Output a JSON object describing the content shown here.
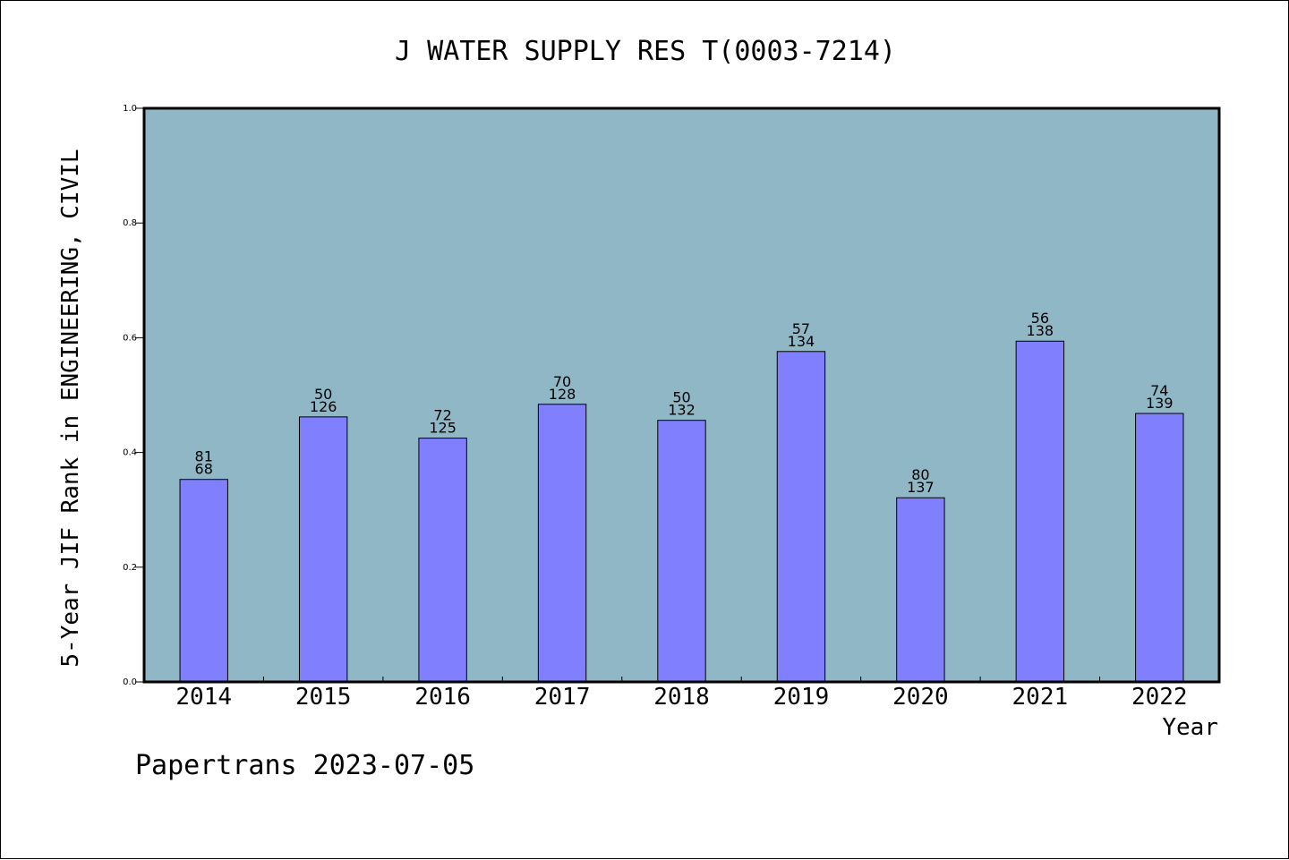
{
  "chart_data": {
    "type": "bar",
    "title": "J WATER SUPPLY RES T(0003-7214)",
    "xlabel": "Year",
    "ylabel": "5-Year JIF Rank in ENGINEERING, CIVIL",
    "ylim": [
      0,
      1
    ],
    "yticks": [
      "0.0",
      "0.2",
      "0.4",
      "0.6",
      "0.8",
      "1.0"
    ],
    "categories": [
      "2014",
      "2015",
      "2016",
      "2017",
      "2018",
      "2019",
      "2020",
      "2021",
      "2022"
    ],
    "values": [
      0.353,
      0.462,
      0.425,
      0.484,
      0.456,
      0.576,
      0.321,
      0.594,
      0.468
    ],
    "labels_top": [
      "81",
      "50",
      "72",
      "70",
      "50",
      "57",
      "80",
      "56",
      "74"
    ],
    "labels_bottom": [
      "68",
      "126",
      "125",
      "128",
      "132",
      "134",
      "137",
      "138",
      "139"
    ],
    "grid": false,
    "colors": {
      "plot_bg": "#8fb7c5",
      "bar": "#8080ff",
      "frame": "#000000"
    }
  },
  "footer": "Papertrans 2023-07-05"
}
